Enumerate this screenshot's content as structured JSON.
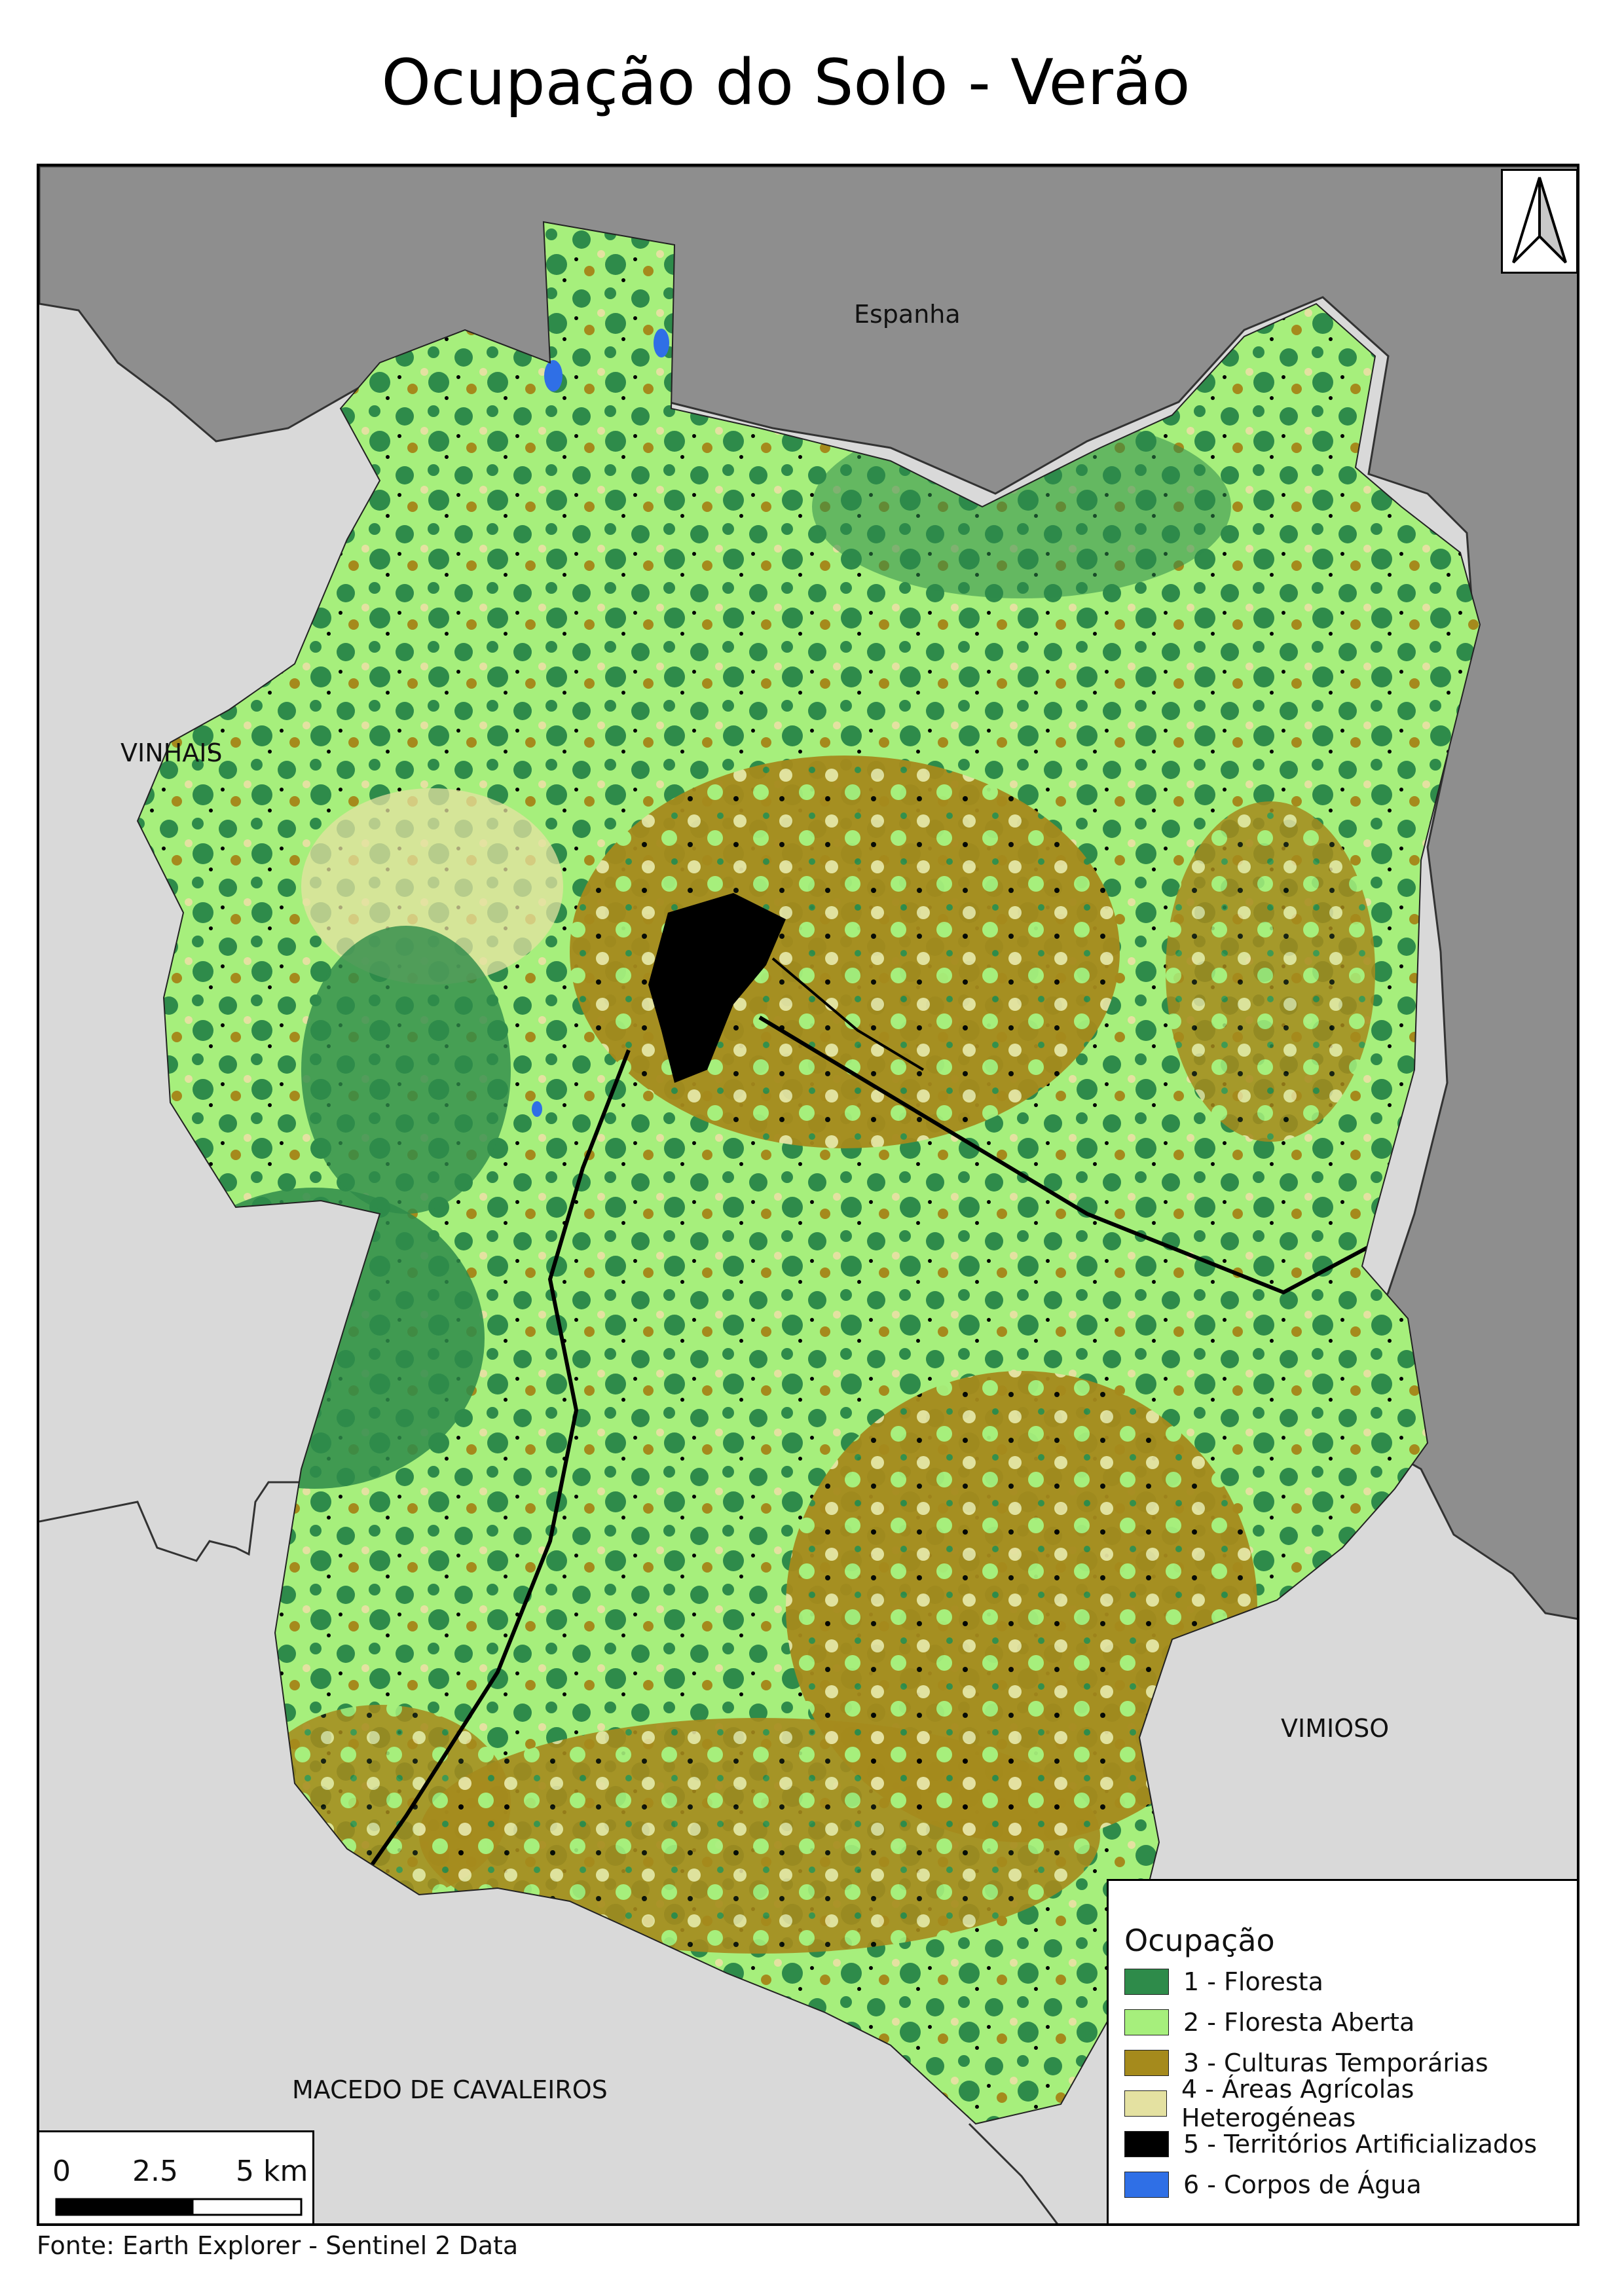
{
  "title": "Ocupação do Solo - Verão",
  "places": {
    "espanha": "Espanha",
    "vinhais": "VINHAIS",
    "vimioso": "VIMIOSO",
    "macedo": "MACEDO DE CAVALEIROS"
  },
  "north_arrow": {
    "icon": "north-arrow-icon"
  },
  "legend": {
    "title": "Ocupação",
    "items": [
      {
        "label": "1 - Floresta",
        "color": "#2e8b4a"
      },
      {
        "label": "2 - Floresta Aberta",
        "color": "#a6ef7c"
      },
      {
        "label": "3 - Culturas Temporárias",
        "color": "#a58a1c"
      },
      {
        "label": "4 - Áreas Agrícolas Heterogéneas",
        "color": "#e4e1a1"
      },
      {
        "label": "5 - Territórios Artificializados",
        "color": "#000000"
      },
      {
        "label": "6 - Corpos de Água",
        "color": "#2f6fe6"
      }
    ]
  },
  "scale": {
    "labels": [
      "0",
      "2.5",
      "5 km"
    ]
  },
  "source": "Fonte: Earth Explorer - Sentinel 2 Data",
  "colors": {
    "spain": "#8e8e8e",
    "neighbors": "#d9d9d9"
  }
}
